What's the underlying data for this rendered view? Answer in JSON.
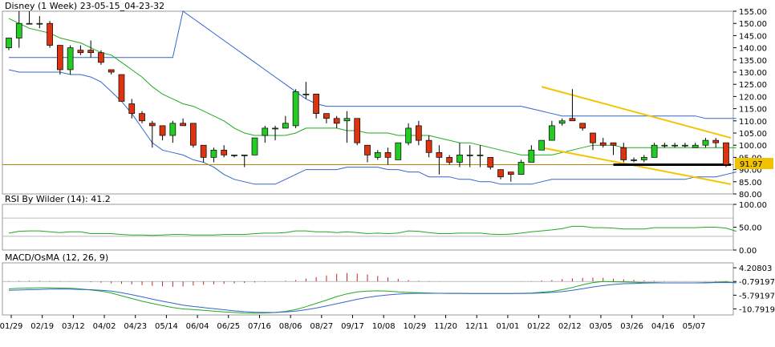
{
  "chart_data": [
    {
      "type": "candlestick",
      "title": "Disney (1 Week) 23-05-15_04-23-32",
      "ylim": [
        80,
        155
      ],
      "yticks": [
        "155.00",
        "150.00",
        "145.00",
        "140.00",
        "135.00",
        "130.00",
        "125.00",
        "120.00",
        "115.00",
        "110.00",
        "105.00",
        "100.00",
        "95.00",
        "90.00",
        "85.00",
        "80.00"
      ],
      "last_price_label": "91.97",
      "x_tick_labels": [
        "01/29",
        "02/19",
        "03/12",
        "04/02",
        "04/23",
        "05/14",
        "06/04",
        "06/25",
        "07/16",
        "08/06",
        "08/27",
        "09/17",
        "10/08",
        "10/29",
        "11/20",
        "12/11",
        "01/01",
        "01/22",
        "02/12",
        "03/05",
        "03/26",
        "04/16",
        "05/07"
      ],
      "candles": [
        {
          "o": 140,
          "h": 144,
          "l": 139,
          "c": 144
        },
        {
          "o": 144,
          "h": 155,
          "l": 140,
          "c": 150
        },
        {
          "o": 150,
          "h": 155,
          "l": 150,
          "c": 150
        },
        {
          "o": 150,
          "h": 153,
          "l": 148,
          "c": 150
        },
        {
          "o": 150,
          "h": 151,
          "l": 140,
          "c": 141
        },
        {
          "o": 141,
          "h": 141,
          "l": 129,
          "c": 131
        },
        {
          "o": 131,
          "h": 141,
          "l": 129,
          "c": 140
        },
        {
          "o": 139,
          "h": 141,
          "l": 137,
          "c": 138
        },
        {
          "o": 139,
          "h": 143,
          "l": 136,
          "c": 138
        },
        {
          "o": 138,
          "h": 139,
          "l": 133,
          "c": 134
        },
        {
          "o": 131,
          "h": 131,
          "l": 129,
          "c": 130
        },
        {
          "o": 129,
          "h": 129,
          "l": 118,
          "c": 118
        },
        {
          "o": 117,
          "h": 119,
          "l": 111,
          "c": 113
        },
        {
          "o": 113,
          "h": 114,
          "l": 109,
          "c": 110
        },
        {
          "o": 109,
          "h": 110,
          "l": 99,
          "c": 108
        },
        {
          "o": 108,
          "h": 108,
          "l": 102,
          "c": 104
        },
        {
          "o": 104,
          "h": 110,
          "l": 101,
          "c": 109
        },
        {
          "o": 109,
          "h": 111,
          "l": 108,
          "c": 108
        },
        {
          "o": 109,
          "h": 109,
          "l": 99,
          "c": 100
        },
        {
          "o": 100,
          "h": 100,
          "l": 93,
          "c": 95
        },
        {
          "o": 95,
          "h": 99,
          "l": 93,
          "c": 98
        },
        {
          "o": 98,
          "h": 100,
          "l": 95,
          "c": 96
        },
        {
          "o": 96,
          "h": 96,
          "l": 95,
          "c": 96
        },
        {
          "o": 96,
          "h": 96,
          "l": 91,
          "c": 96
        },
        {
          "o": 96,
          "h": 103,
          "l": 96,
          "c": 103
        },
        {
          "o": 104,
          "h": 108,
          "l": 101,
          "c": 107
        },
        {
          "o": 107,
          "h": 108,
          "l": 102,
          "c": 107
        },
        {
          "o": 107,
          "h": 112,
          "l": 107,
          "c": 109
        },
        {
          "o": 108,
          "h": 123,
          "l": 107,
          "c": 122
        },
        {
          "o": 121,
          "h": 126,
          "l": 119,
          "c": 121
        },
        {
          "o": 121,
          "h": 121,
          "l": 111,
          "c": 113
        },
        {
          "o": 113,
          "h": 113,
          "l": 109,
          "c": 111
        },
        {
          "o": 111,
          "h": 112,
          "l": 107,
          "c": 109
        },
        {
          "o": 110,
          "h": 114,
          "l": 101,
          "c": 111
        },
        {
          "o": 111,
          "h": 111,
          "l": 100,
          "c": 101
        },
        {
          "o": 100,
          "h": 100,
          "l": 93,
          "c": 96
        },
        {
          "o": 95,
          "h": 98,
          "l": 94,
          "c": 97
        },
        {
          "o": 97,
          "h": 99,
          "l": 92,
          "c": 95
        },
        {
          "o": 94,
          "h": 101,
          "l": 94,
          "c": 101
        },
        {
          "o": 101,
          "h": 109,
          "l": 100,
          "c": 107
        },
        {
          "o": 108,
          "h": 110,
          "l": 100,
          "c": 102
        },
        {
          "o": 102,
          "h": 104,
          "l": 95,
          "c": 97
        },
        {
          "o": 97,
          "h": 100,
          "l": 88,
          "c": 95
        },
        {
          "o": 95,
          "h": 96,
          "l": 92,
          "c": 93
        },
        {
          "o": 93,
          "h": 101,
          "l": 91,
          "c": 96
        },
        {
          "o": 96,
          "h": 100,
          "l": 91,
          "c": 96
        },
        {
          "o": 96,
          "h": 100,
          "l": 91,
          "c": 96
        },
        {
          "o": 95,
          "h": 95,
          "l": 90,
          "c": 91
        },
        {
          "o": 90,
          "h": 90,
          "l": 86,
          "c": 87
        },
        {
          "o": 89,
          "h": 89,
          "l": 85,
          "c": 88
        },
        {
          "o": 88,
          "h": 94,
          "l": 88,
          "c": 93
        },
        {
          "o": 93,
          "h": 100,
          "l": 93,
          "c": 98
        },
        {
          "o": 98,
          "h": 102,
          "l": 98,
          "c": 102
        },
        {
          "o": 102,
          "h": 110,
          "l": 102,
          "c": 108
        },
        {
          "o": 109,
          "h": 111,
          "l": 108,
          "c": 110
        },
        {
          "o": 111,
          "h": 123,
          "l": 110,
          "c": 110
        },
        {
          "o": 109,
          "h": 109,
          "l": 106,
          "c": 107
        },
        {
          "o": 105,
          "h": 105,
          "l": 98,
          "c": 101
        },
        {
          "o": 101,
          "h": 103,
          "l": 99,
          "c": 100
        },
        {
          "o": 101,
          "h": 101,
          "l": 96,
          "c": 100
        },
        {
          "o": 99,
          "h": 101,
          "l": 93,
          "c": 94
        },
        {
          "o": 94,
          "h": 95,
          "l": 93,
          "c": 94
        },
        {
          "o": 94,
          "h": 96,
          "l": 93,
          "c": 95
        },
        {
          "o": 95,
          "h": 101,
          "l": 95,
          "c": 100
        },
        {
          "o": 100,
          "h": 101,
          "l": 99,
          "c": 100
        },
        {
          "o": 100,
          "h": 101,
          "l": 99,
          "c": 100
        },
        {
          "o": 100,
          "h": 101,
          "l": 99,
          "c": 100
        },
        {
          "o": 99,
          "h": 101,
          "l": 99,
          "c": 100
        },
        {
          "o": 100,
          "h": 103,
          "l": 99,
          "c": 102
        },
        {
          "o": 102,
          "h": 103,
          "l": 99,
          "c": 101
        },
        {
          "o": 101,
          "h": 101,
          "l": 91,
          "c": 92
        }
      ],
      "bollinger_upper": [
        136,
        136,
        136,
        136,
        136,
        136,
        136,
        136,
        136,
        136,
        136,
        136,
        136,
        136,
        136,
        136,
        136,
        155,
        152,
        149,
        146,
        143,
        140,
        137,
        134,
        131,
        128,
        125,
        122,
        119,
        117,
        116,
        116,
        116,
        116,
        116,
        116,
        116,
        116,
        116,
        116,
        116,
        116,
        116,
        116,
        116,
        116,
        116,
        116,
        116,
        116,
        115,
        114,
        113,
        112,
        112,
        112,
        112,
        112,
        112,
        112,
        112,
        112,
        112,
        112,
        112,
        112,
        112,
        111,
        111,
        111,
        111
      ],
      "bollinger_middle": [
        152,
        150,
        148,
        147,
        146,
        144,
        143,
        142,
        140,
        138,
        137,
        134,
        131,
        128,
        124,
        121,
        119,
        117,
        116,
        114,
        112,
        110,
        107,
        105,
        104,
        104,
        104,
        104,
        105,
        107,
        107,
        107,
        107,
        106,
        106,
        105,
        105,
        105,
        104,
        104,
        104,
        104,
        103,
        102,
        101,
        101,
        100,
        99,
        98,
        97,
        96,
        96,
        96,
        96,
        97,
        98,
        99,
        100,
        100,
        100,
        99,
        99,
        99,
        99,
        99,
        99,
        99,
        99,
        99,
        99,
        99,
        99
      ],
      "bollinger_lower": [
        131,
        130,
        130,
        130,
        130,
        130,
        129,
        129,
        128,
        126,
        122,
        118,
        113,
        107,
        101,
        98,
        97,
        96,
        94,
        93,
        91,
        88,
        86,
        85,
        84,
        84,
        84,
        86,
        88,
        90,
        90,
        90,
        90,
        91,
        91,
        91,
        91,
        90,
        90,
        89,
        89,
        87,
        87,
        87,
        86,
        86,
        85,
        85,
        84,
        84,
        84,
        84,
        85,
        86,
        86,
        86,
        86,
        86,
        86,
        86,
        86,
        86,
        86,
        86,
        86,
        86,
        86,
        87,
        87,
        87,
        88,
        89
      ],
      "horizontal_line": 92,
      "support_line_value": 92,
      "channel_upper": [
        124,
        103
      ],
      "channel_lower": [
        99,
        84
      ]
    },
    {
      "type": "line",
      "title": "RSI By Wilder (14): 41.2",
      "ylim": [
        0,
        100
      ],
      "yticks": [
        "100.00",
        "50.00",
        "0.00"
      ],
      "levels": [
        70,
        30
      ],
      "series": [
        {
          "name": "RSI",
          "values": [
            37,
            41,
            42,
            42,
            40,
            38,
            40,
            40,
            36,
            36,
            36,
            34,
            33,
            33,
            32,
            33,
            34,
            34,
            33,
            33,
            33,
            34,
            34,
            34,
            36,
            37,
            37,
            38,
            42,
            42,
            40,
            40,
            38,
            40,
            38,
            36,
            37,
            36,
            37,
            42,
            41,
            38,
            36,
            36,
            37,
            37,
            37,
            35,
            34,
            35,
            37,
            40,
            42,
            44,
            47,
            52,
            52,
            49,
            49,
            48,
            46,
            46,
            46,
            49,
            49,
            49,
            49,
            49,
            50,
            50,
            48,
            41
          ]
        }
      ]
    },
    {
      "type": "line",
      "title": "MACD/OsMA (12, 26, 9)",
      "ylim": [
        -13,
        6
      ],
      "yticks": [
        "4.20803",
        "-0.79197",
        "-5.79197",
        "-10.7919"
      ],
      "series": [
        {
          "name": "MACD",
          "values": [
            -3.5,
            -3.3,
            -3.2,
            -3.1,
            -3.1,
            -3.2,
            -3.3,
            -3.5,
            -3.9,
            -4.3,
            -5.0,
            -6.0,
            -7.0,
            -8.0,
            -8.8,
            -9.6,
            -10.3,
            -10.8,
            -11.0,
            -11.3,
            -11.6,
            -11.9,
            -12.1,
            -12.3,
            -12.4,
            -12.3,
            -12.1,
            -11.7,
            -11.0,
            -10.0,
            -8.8,
            -7.6,
            -6.3,
            -5.3,
            -4.6,
            -4.3,
            -4.2,
            -4.3,
            -4.6,
            -4.8,
            -4.9,
            -5.0,
            -5.1,
            -5.2,
            -5.2,
            -5.2,
            -5.2,
            -5.2,
            -5.2,
            -5.2,
            -5.1,
            -5.0,
            -4.7,
            -4.4,
            -3.8,
            -3.0,
            -2.0,
            -1.2,
            -0.8,
            -0.9,
            -1.0,
            -1.1,
            -1.2,
            -1.2,
            -1.3,
            -1.3,
            -1.3,
            -1.3,
            -1.2,
            -1.1,
            -1.0,
            -1.3
          ]
        },
        {
          "name": "Signal",
          "values": [
            -4.0,
            -3.9,
            -3.8,
            -3.7,
            -3.6,
            -3.6,
            -3.6,
            -3.7,
            -3.8,
            -4.0,
            -4.3,
            -4.9,
            -5.6,
            -6.4,
            -7.2,
            -8.0,
            -8.7,
            -9.4,
            -9.9,
            -10.3,
            -10.7,
            -11.1,
            -11.5,
            -11.8,
            -12.0,
            -12.1,
            -12.1,
            -11.9,
            -11.6,
            -11.1,
            -10.5,
            -9.7,
            -8.9,
            -8.1,
            -7.3,
            -6.6,
            -6.1,
            -5.7,
            -5.4,
            -5.2,
            -5.1,
            -5.1,
            -5.1,
            -5.1,
            -5.1,
            -5.2,
            -5.2,
            -5.2,
            -5.2,
            -5.2,
            -5.2,
            -5.1,
            -5.0,
            -4.8,
            -4.5,
            -4.0,
            -3.4,
            -2.8,
            -2.3,
            -1.9,
            -1.6,
            -1.5,
            -1.4,
            -1.3,
            -1.3,
            -1.3,
            -1.3,
            -1.3,
            -1.3,
            -1.2,
            -1.2,
            -1.2
          ]
        },
        {
          "name": "OsMA",
          "values": [
            0.2,
            0.3,
            0.3,
            0.3,
            0.2,
            0.2,
            0.1,
            0.0,
            -0.3,
            -0.5,
            -0.8,
            -1.0,
            -1.2,
            -1.5,
            -1.8,
            -2.0,
            -2.2,
            -2.1,
            -1.7,
            -1.4,
            -1.2,
            -1.0,
            -0.8,
            -0.6,
            -0.4,
            -0.2,
            0.0,
            0.3,
            0.6,
            1.2,
            1.8,
            2.5,
            3.2,
            3.5,
            3.3,
            2.9,
            2.3,
            1.7,
            1.1,
            0.6,
            0.3,
            0.2,
            0.1,
            0.0,
            0.0,
            0.0,
            0.0,
            0.0,
            0.0,
            0.0,
            0.1,
            0.2,
            0.4,
            0.6,
            1.0,
            1.3,
            1.5,
            1.6,
            1.5,
            1.2,
            0.9,
            0.6,
            0.4,
            0.3,
            0.2,
            0.1,
            0.1,
            0.1,
            0.1,
            0.2,
            0.2,
            0.1
          ]
        }
      ]
    }
  ]
}
